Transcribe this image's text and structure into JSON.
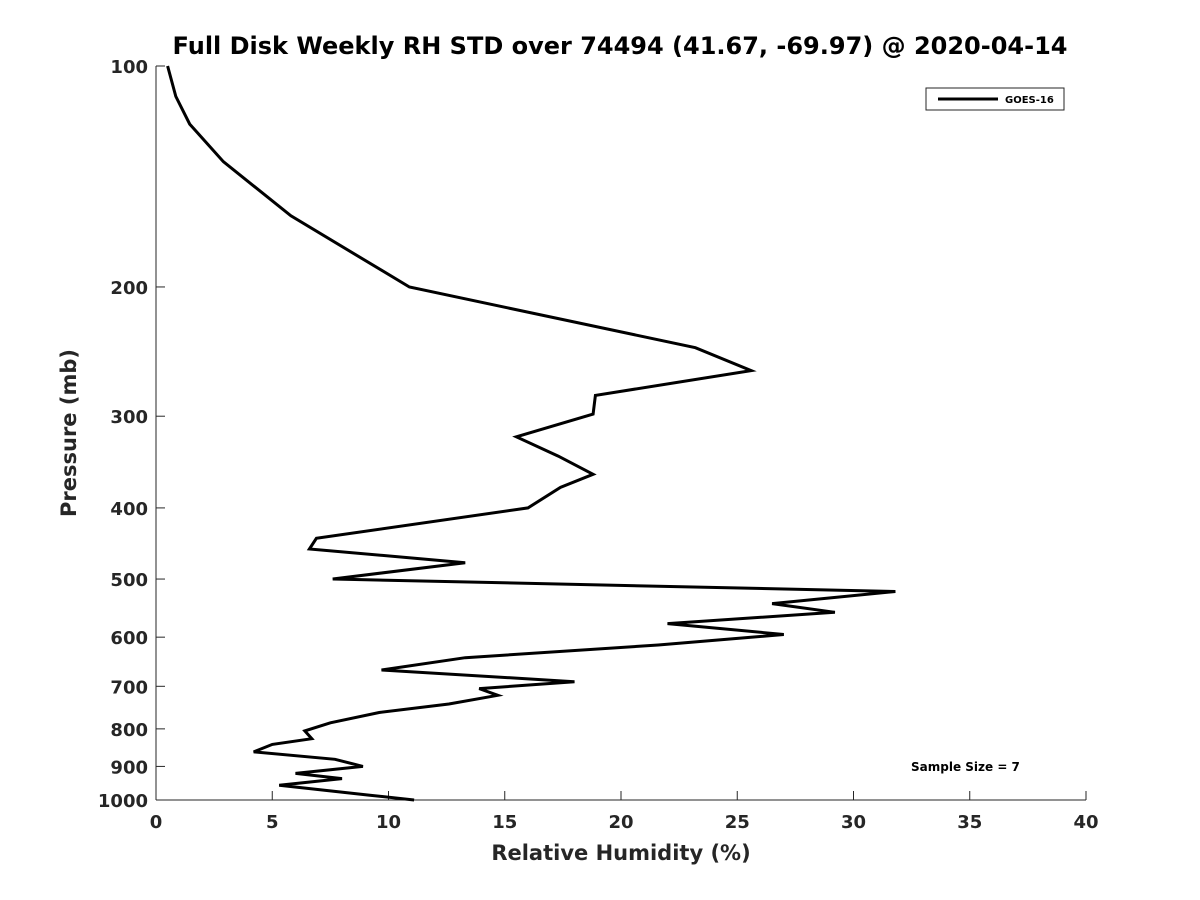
{
  "chart_data": {
    "type": "line",
    "title": "Full Disk Weekly RH STD over 74494 (41.67, -69.97) @ 2020-04-14",
    "xlabel": "Relative Humidity (%)",
    "ylabel": "Pressure (mb)",
    "xlim": [
      0,
      40
    ],
    "ylim": [
      100,
      1000
    ],
    "yscale": "log",
    "yreversed": true,
    "grid": false,
    "xticks": [
      0,
      5,
      10,
      15,
      20,
      25,
      30,
      35,
      40
    ],
    "xtick_labels": [
      "0",
      "5",
      "10",
      "15",
      "20",
      "25",
      "30",
      "35",
      "40"
    ],
    "yticks": [
      100,
      200,
      300,
      400,
      500,
      600,
      700,
      800,
      900,
      1000
    ],
    "ytick_labels": [
      "100",
      "200",
      "300",
      "400",
      "500",
      "600",
      "700",
      "800",
      "900",
      "1000"
    ],
    "legend_position": "top-right",
    "series": [
      {
        "name": "GOES-16",
        "color": "#000000",
        "x": [
          0.5,
          0.85,
          1.45,
          2.9,
          5.8,
          10.9,
          23.2,
          25.6,
          18.9,
          18.8,
          15.5,
          17.3,
          18.8,
          17.4,
          16.0,
          6.9,
          6.6,
          13.3,
          7.6,
          31.8,
          26.5,
          29.2,
          22.0,
          27.0,
          21.6,
          13.3,
          9.7,
          18.0,
          13.9,
          14.7,
          12.6,
          9.6,
          7.5,
          6.4,
          6.7,
          5.0,
          4.2,
          7.7,
          8.9,
          6.0,
          8.0,
          5.3,
          9.2,
          11.1
        ],
        "y": [
          100,
          110,
          120,
          135,
          160,
          200,
          242,
          260,
          281,
          298,
          320,
          340,
          360,
          375,
          400,
          440,
          455,
          475,
          500,
          520,
          540,
          555,
          575,
          595,
          615,
          640,
          665,
          690,
          705,
          720,
          740,
          760,
          785,
          805,
          825,
          840,
          860,
          880,
          900,
          920,
          935,
          955,
          985,
          1000
        ]
      }
    ],
    "annotations": [
      {
        "text": "Sample Size = 7",
        "position": "bottom-right"
      }
    ]
  }
}
